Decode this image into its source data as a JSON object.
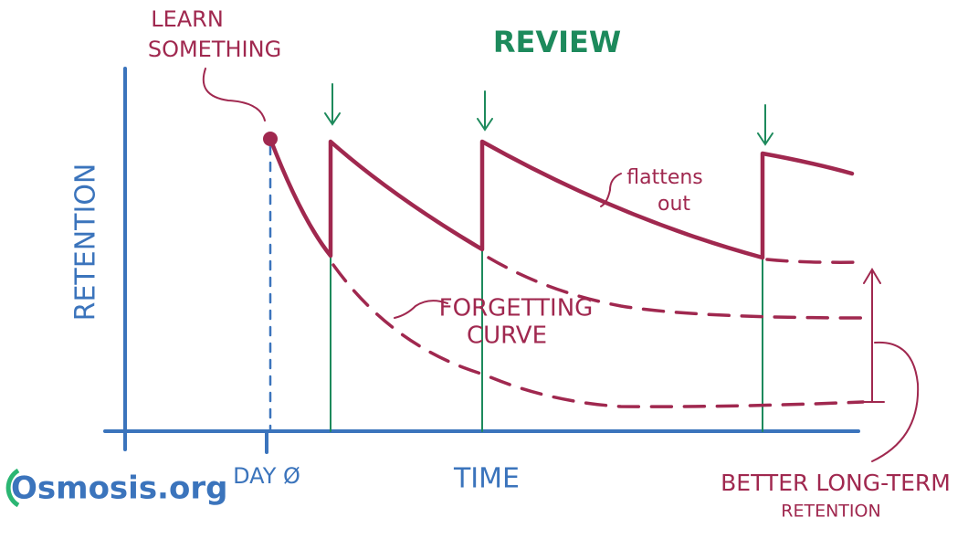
{
  "annotations": {
    "learn": [
      "LEARN",
      "SOMETHING"
    ],
    "review": "REVIEW",
    "flattens": [
      "flattens",
      "out"
    ],
    "forgetting": [
      "FORGETTING",
      "CURVE"
    ],
    "better": [
      "BETTER LONG-TERM",
      "RETENTION"
    ]
  },
  "axes": {
    "y_label": "RETENTION",
    "x_label": "TIME",
    "origin_label": "DAY Ø"
  },
  "logo": "Osmosis.org"
}
